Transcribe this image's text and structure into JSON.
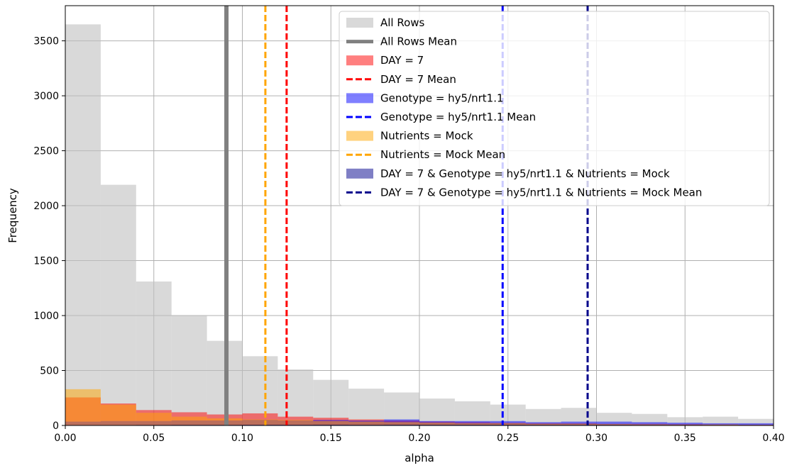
{
  "chart_data": {
    "type": "bar",
    "title": "",
    "xlabel": "alpha",
    "ylabel": "Frequency",
    "xlim": [
      0.0,
      0.4
    ],
    "ylim": [
      0,
      3820
    ],
    "xticks": [
      "0.00",
      "0.05",
      "0.10",
      "0.15",
      "0.20",
      "0.25",
      "0.30",
      "0.35",
      "0.40"
    ],
    "xtick_values": [
      0.0,
      0.05,
      0.1,
      0.15,
      0.2,
      0.25,
      0.3,
      0.35,
      0.4
    ],
    "yticks": [
      "0",
      "500",
      "1000",
      "1500",
      "2000",
      "2500",
      "3000",
      "3500"
    ],
    "ytick_values": [
      0,
      500,
      1000,
      1500,
      2000,
      2500,
      3000,
      3500
    ],
    "grid": true,
    "legend_position": "top-right",
    "bin_edges": [
      0.0,
      0.02,
      0.04,
      0.06,
      0.08,
      0.1,
      0.12,
      0.14,
      0.16,
      0.18,
      0.2,
      0.22,
      0.24,
      0.26,
      0.28,
      0.3,
      0.32,
      0.34,
      0.36,
      0.38,
      0.4
    ],
    "series": [
      {
        "name": "All Rows",
        "color": "#bfbfbf",
        "opacity": 0.6,
        "values": [
          3650,
          2190,
          1310,
          1000,
          770,
          630,
          510,
          415,
          335,
          300,
          245,
          220,
          190,
          150,
          160,
          115,
          105,
          75,
          80,
          60
        ]
      },
      {
        "name": "DAY = 7",
        "color": "#ff0000",
        "opacity": 0.5,
        "values": [
          255,
          200,
          140,
          120,
          100,
          110,
          80,
          70,
          55,
          45,
          35,
          30,
          25,
          20,
          20,
          15,
          15,
          12,
          10,
          8
        ]
      },
      {
        "name": "Genotype = hy5/nrt1.1",
        "color": "#0000ff",
        "opacity": 0.5,
        "values": [
          35,
          40,
          40,
          45,
          45,
          50,
          45,
          50,
          45,
          55,
          40,
          40,
          40,
          30,
          35,
          35,
          30,
          25,
          20,
          20
        ]
      },
      {
        "name": "Nutrients = Mock",
        "color": "#ffa500",
        "opacity": 0.5,
        "values": [
          330,
          190,
          115,
          80,
          65,
          55,
          50,
          40,
          35,
          30,
          25,
          20,
          20,
          15,
          15,
          12,
          10,
          8,
          8,
          5
        ]
      },
      {
        "name": "DAY = 7 & Genotype = hy5/nrt1.1 & Nutrients = Mock",
        "color": "#00008b",
        "opacity": 0.5,
        "values": [
          2,
          3,
          4,
          5,
          5,
          6,
          6,
          7,
          6,
          7,
          6,
          6,
          6,
          5,
          5,
          5,
          4,
          4,
          3,
          3
        ]
      }
    ],
    "means": [
      {
        "name": "All Rows Mean",
        "value": 0.091,
        "color": "#808080",
        "style": "solid"
      },
      {
        "name": "DAY = 7 Mean",
        "value": 0.125,
        "color": "#ff0000",
        "style": "dashed"
      },
      {
        "name": "Genotype = hy5/nrt1.1 Mean",
        "value": 0.247,
        "color": "#0000ff",
        "style": "dashed"
      },
      {
        "name": "Nutrients = Mock Mean",
        "value": 0.113,
        "color": "#ffa500",
        "style": "dashed"
      },
      {
        "name": "DAY = 7 & Genotype = hy5/nrt1.1 & Nutrients = Mock Mean",
        "value": 0.295,
        "color": "#00008b",
        "style": "dashed"
      }
    ],
    "legend": [
      {
        "label": "All Rows",
        "kind": "patch",
        "color": "#bfbfbf",
        "opacity": 0.6
      },
      {
        "label": "All Rows Mean",
        "kind": "line",
        "color": "#808080",
        "style": "solid"
      },
      {
        "label": "DAY = 7",
        "kind": "patch",
        "color": "#ff0000",
        "opacity": 0.5
      },
      {
        "label": "DAY = 7 Mean",
        "kind": "line",
        "color": "#ff0000",
        "style": "dashed"
      },
      {
        "label": "Genotype = hy5/nrt1.1",
        "kind": "patch",
        "color": "#0000ff",
        "opacity": 0.5
      },
      {
        "label": "Genotype = hy5/nrt1.1 Mean",
        "kind": "line",
        "color": "#0000ff",
        "style": "dashed"
      },
      {
        "label": "Nutrients = Mock",
        "kind": "patch",
        "color": "#ffa500",
        "opacity": 0.5
      },
      {
        "label": "Nutrients = Mock Mean",
        "kind": "line",
        "color": "#ffa500",
        "style": "dashed"
      },
      {
        "label": "DAY = 7 & Genotype = hy5/nrt1.1 & Nutrients = Mock",
        "kind": "patch",
        "color": "#00008b",
        "opacity": 0.5
      },
      {
        "label": "DAY = 7 & Genotype = hy5/nrt1.1 & Nutrients = Mock Mean",
        "kind": "line",
        "color": "#00008b",
        "style": "dashed"
      }
    ]
  }
}
